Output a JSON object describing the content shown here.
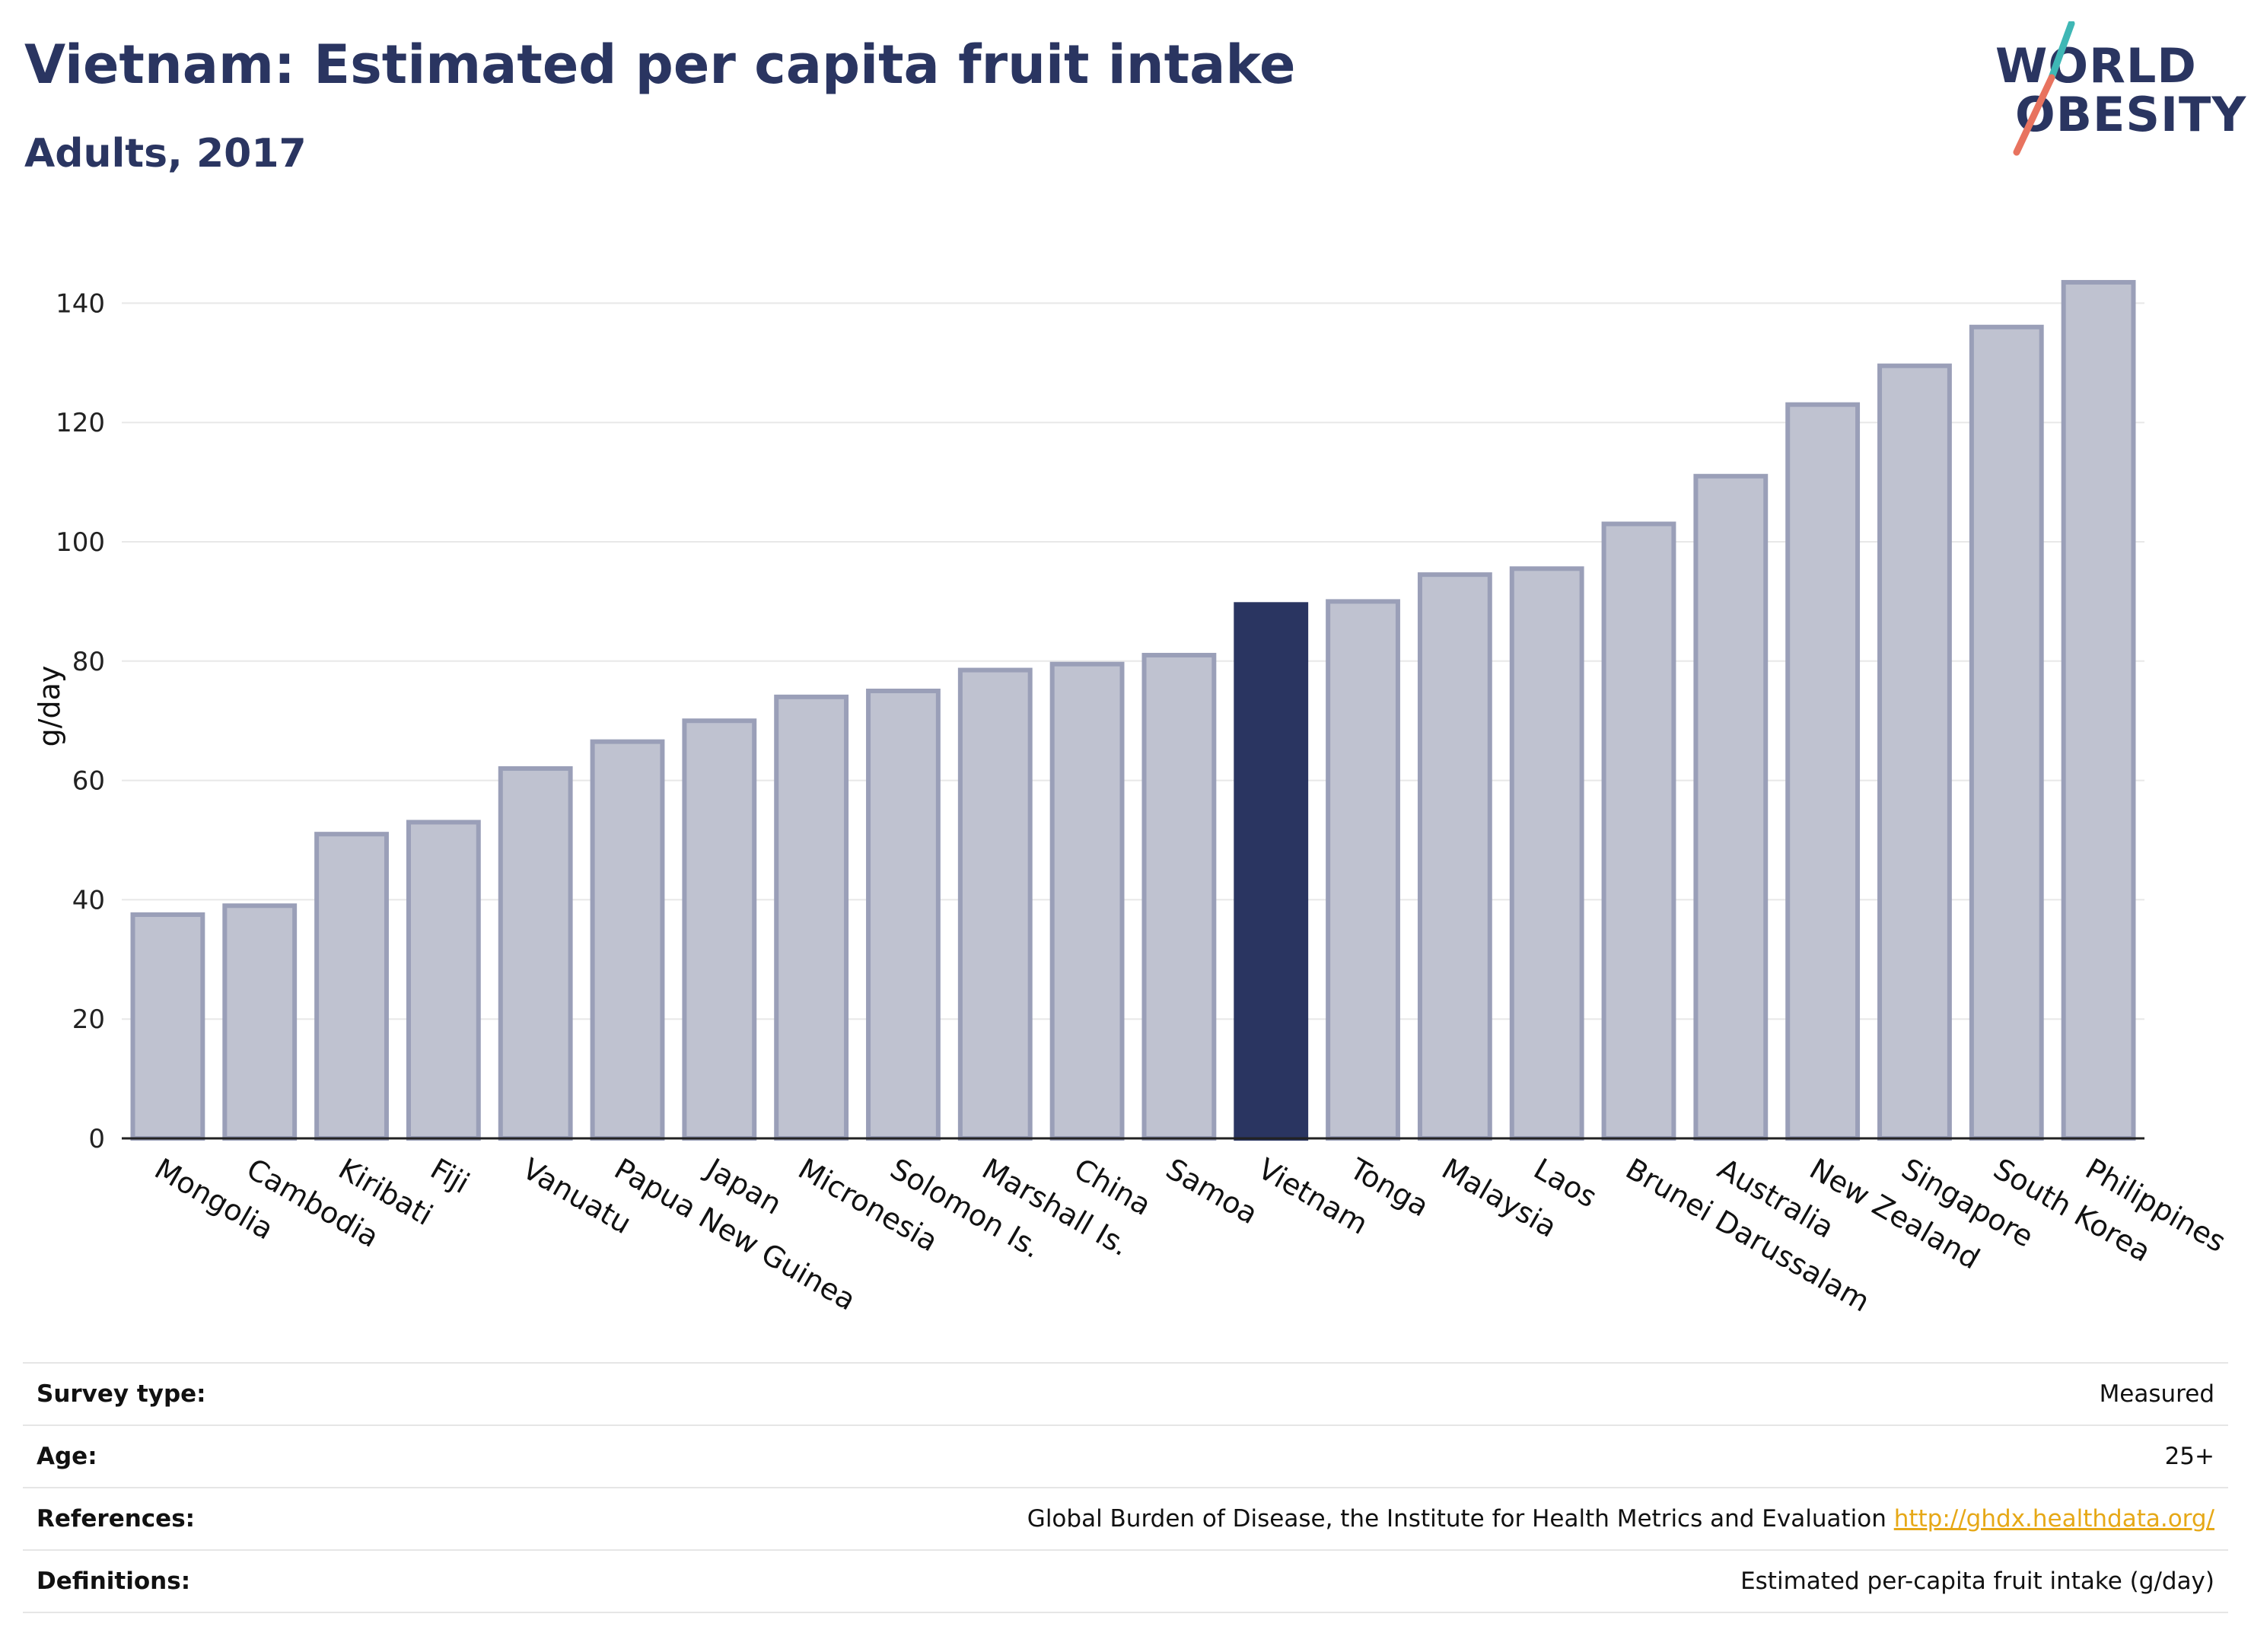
{
  "header": {
    "title": "Vietnam: Estimated per capita fruit intake",
    "subtitle": "Adults, 2017"
  },
  "logo": {
    "line1": "WORLD",
    "line2": "OBESITY"
  },
  "colors": {
    "highlight": "#2a3561",
    "bar_fill": "#bfc2d0",
    "bar_stroke": "#9a9fb8",
    "accent_link": "#e6a817",
    "logo_teal": "#3fb7b5",
    "logo_coral": "#e8735f"
  },
  "chart_data": {
    "type": "bar",
    "ylabel": "g/day",
    "ylim": [
      0,
      150
    ],
    "yticks": [
      0,
      20,
      40,
      60,
      80,
      100,
      120,
      140
    ],
    "grid": true,
    "highlight_category": "Vietnam",
    "categories": [
      "Mongolia",
      "Cambodia",
      "Kiribati",
      "Fiji",
      "Vanuatu",
      "Papua New Guinea",
      "Japan",
      "Micronesia",
      "Solomon Is.",
      "Marshall Is.",
      "China",
      "Samoa",
      "Vietnam",
      "Tonga",
      "Malaysia",
      "Laos",
      "Brunei Darussalam",
      "Australia",
      "New Zealand",
      "Singapore",
      "South Korea",
      "Philippines"
    ],
    "values": [
      37.5,
      39,
      51,
      53,
      62,
      66.5,
      70,
      74,
      75,
      78.5,
      79.5,
      81,
      89.5,
      90,
      94.5,
      95.5,
      103,
      111,
      123,
      129.5,
      136,
      143.5
    ]
  },
  "info": {
    "rows": [
      {
        "key": "Survey type:",
        "value": "Measured"
      },
      {
        "key": "Age:",
        "value": "25+"
      },
      {
        "key": "References:",
        "value": "Global Burden of Disease, the Institute for Health Metrics and Evaluation",
        "link": "http://ghdx.healthdata.org/"
      },
      {
        "key": "Definitions:",
        "value": "Estimated per-capita fruit intake (g/day)"
      }
    ]
  }
}
